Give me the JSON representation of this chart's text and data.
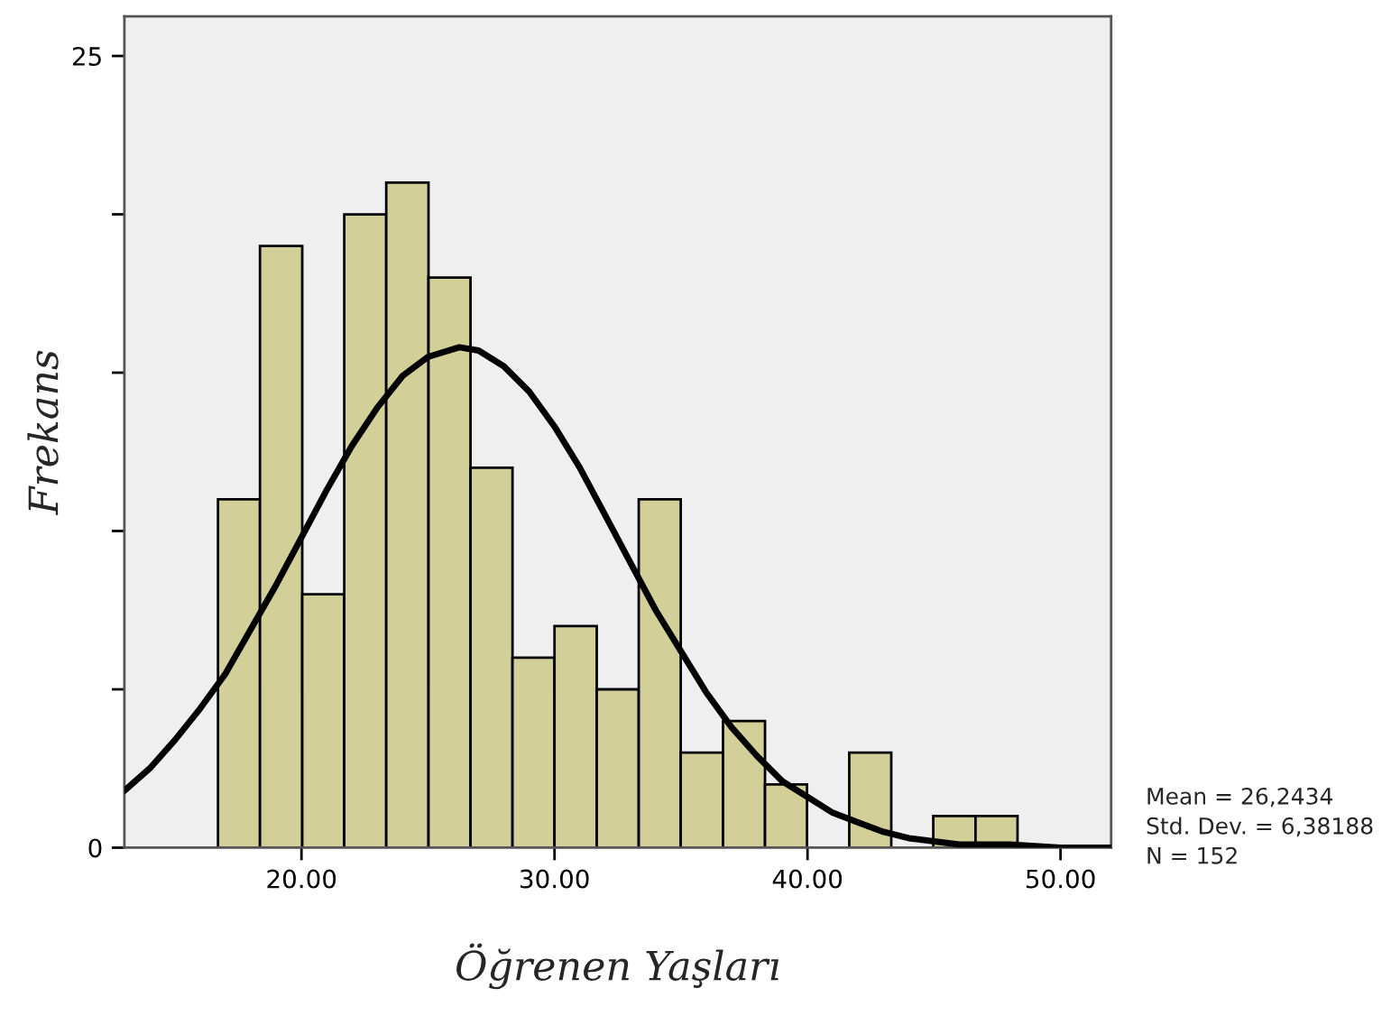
{
  "chart_data": {
    "type": "histogram",
    "xlabel": "Öğrenen Yaşları",
    "ylabel": "Frekans",
    "bins": [
      16.7,
      18.36,
      20.03,
      21.69,
      23.35,
      25.02,
      26.68,
      28.34,
      30.0,
      31.67,
      33.33,
      34.99,
      36.66,
      38.32,
      39.98,
      41.65,
      43.31,
      44.97,
      46.64,
      48.3
    ],
    "values": [
      11,
      19,
      8,
      20,
      21,
      18,
      12,
      6,
      7,
      5,
      11,
      3,
      4,
      2,
      0,
      3,
      0,
      1,
      1
    ],
    "color": "#d3cf98",
    "series": [
      {
        "type": "line",
        "color": "#000000",
        "x": [
          13,
          14,
          15,
          16,
          17,
          18,
          19,
          20,
          21,
          22,
          23,
          24,
          25,
          26.24,
          27,
          28,
          29,
          30,
          31,
          32,
          33,
          34,
          35,
          36,
          37,
          38,
          39,
          40,
          41,
          42,
          43,
          44,
          46,
          48,
          50,
          52
        ],
        "values": [
          1.8,
          2.5,
          3.4,
          4.4,
          5.5,
          6.9,
          8.3,
          9.8,
          11.3,
          12.7,
          13.9,
          14.9,
          15.5,
          15.8,
          15.7,
          15.2,
          14.4,
          13.3,
          12.0,
          10.5,
          9.0,
          7.5,
          6.2,
          4.9,
          3.8,
          2.9,
          2.1,
          1.6,
          1.1,
          0.8,
          0.5,
          0.3,
          0.1,
          0.1,
          0.0,
          0.0
        ]
      }
    ],
    "xlim": [
      13,
      52
    ],
    "ylim": [
      0,
      26.25
    ],
    "xticks": [
      {
        "value": 20,
        "label": "20.00"
      },
      {
        "value": 30,
        "label": "30.00"
      },
      {
        "value": 40,
        "label": "40.00"
      },
      {
        "value": 50,
        "label": "50.00"
      }
    ],
    "yticks": [
      0,
      {
        "value": 5,
        "label": null
      },
      {
        "value": 10,
        "label": null
      },
      {
        "value": 15,
        "label": null
      },
      {
        "value": 20,
        "label": null
      },
      25
    ],
    "grid": false,
    "legend": false,
    "annotations": [
      "Mean = 26,2434",
      "Std. Dev. = 6,38188",
      "N = 152"
    ]
  }
}
